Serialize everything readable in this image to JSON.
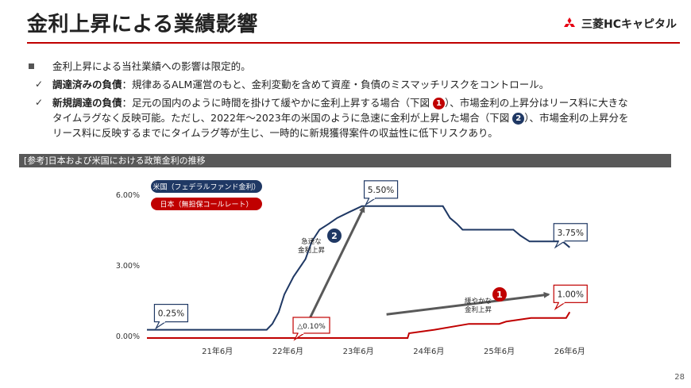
{
  "header": {
    "title": "金利上昇による業績影響",
    "logo_text": "三菱HCキャピタル"
  },
  "bullets": {
    "main": "金利上昇による当社業績への影響は限定的。",
    "item1_bold": "調達済みの負債",
    "item1_text": "：規律あるALM運営のもと、金利変動を含めて資産・負債のミスマッチリスクをコントロール。",
    "item2_bold": "新規調達の負債",
    "item2_text_a": "：足元の国内のように時間を掛けて緩やかに金利上昇する場合（下図",
    "item2_num1": "1",
    "item2_text_b": "）、市場金利の上昇分はリース料に大きな",
    "item2_line2": "タイムラグなく反映可能。ただし、2022年～2023年の米国のように急速に金利が上昇した場合（下図",
    "item2_num2": "2",
    "item2_text_c": "）、市場金利の上昇分を",
    "item2_line3": "リース料に反映するまでにタイムラグ等が生じ、一時的に新規獲得案件の収益性に低下リスクあり。"
  },
  "section": {
    "label": "[参考]日本および米国における政策金利の推移"
  },
  "colors": {
    "us": "#1f3864",
    "jp": "#c00000",
    "arrow": "#595959"
  },
  "icons": {
    "logo": "mitsubishi-three-diamonds-icon",
    "check": "check-icon",
    "bullet": "square-bullet-icon"
  },
  "page_number": "28",
  "chart_data": {
    "type": "line",
    "title": "",
    "ylim": [
      0,
      6
    ],
    "y_ticks": [
      {
        "value": 0,
        "label": "0.00%"
      },
      {
        "value": 3,
        "label": "3.00%"
      },
      {
        "value": 6,
        "label": "6.00%"
      }
    ],
    "x_ticks": [
      {
        "value": 2021.5,
        "label": "21年6月"
      },
      {
        "value": 2022.5,
        "label": "22年6月"
      },
      {
        "value": 2023.5,
        "label": "23年6月"
      },
      {
        "value": 2024.5,
        "label": "24年6月"
      },
      {
        "value": 2025.5,
        "label": "25年6月"
      },
      {
        "value": 2026.5,
        "label": "26年6月"
      }
    ],
    "xlim": [
      2020.5,
      2026.7
    ],
    "grid": false,
    "legend": "top-left",
    "series": [
      {
        "name": "米国（フェデラルファンド金利）",
        "color": "#1f3864",
        "points": [
          [
            2020.5,
            0.25
          ],
          [
            2022.2,
            0.25
          ],
          [
            2022.28,
            0.5
          ],
          [
            2022.37,
            1.0
          ],
          [
            2022.45,
            1.75
          ],
          [
            2022.58,
            2.5
          ],
          [
            2022.75,
            3.25
          ],
          [
            2022.84,
            4.0
          ],
          [
            2022.95,
            4.5
          ],
          [
            2023.08,
            4.75
          ],
          [
            2023.2,
            5.0
          ],
          [
            2023.37,
            5.25
          ],
          [
            2023.55,
            5.5
          ],
          [
            2024.7,
            5.5
          ],
          [
            2024.8,
            5.0
          ],
          [
            2024.9,
            4.75
          ],
          [
            2024.98,
            4.5
          ],
          [
            2025.7,
            4.5
          ],
          [
            2025.8,
            4.25
          ],
          [
            2025.93,
            4.0
          ],
          [
            2026.4,
            4.0
          ],
          [
            2026.5,
            3.75
          ]
        ]
      },
      {
        "name": "日本（無担保コールレート）",
        "color": "#c00000",
        "points": [
          [
            2020.5,
            -0.1
          ],
          [
            2024.2,
            -0.1
          ],
          [
            2024.22,
            0.1
          ],
          [
            2024.58,
            0.25
          ],
          [
            2025.07,
            0.5
          ],
          [
            2025.5,
            0.5
          ],
          [
            2025.6,
            0.6
          ],
          [
            2025.95,
            0.75
          ],
          [
            2026.45,
            0.75
          ],
          [
            2026.5,
            1.0
          ]
        ]
      }
    ],
    "data_labels": [
      {
        "text": "0.25%",
        "x": 2020.55,
        "y": 0.25,
        "series": "us"
      },
      {
        "text": "5.50%",
        "x": 2023.55,
        "y": 5.5,
        "series": "us"
      },
      {
        "text": "3.75%",
        "x": 2026.5,
        "y": 3.75,
        "series": "us"
      },
      {
        "text": "△0.10%",
        "x": 2022.8,
        "y": -0.1,
        "series": "jp"
      },
      {
        "text": "1.00%",
        "x": 2026.5,
        "y": 1.0,
        "series": "jp"
      }
    ],
    "annotations": [
      {
        "number": "2",
        "text_lines": [
          "急速な",
          "金利上昇"
        ],
        "series": "us",
        "from": [
          2022.7,
          0.05
        ],
        "to": [
          2023.58,
          5.45
        ]
      },
      {
        "number": "1",
        "text_lines": [
          "緩やかな",
          "金利上昇"
        ],
        "series": "jp",
        "from": [
          2023.9,
          0.9
        ],
        "to": [
          2026.2,
          1.75
        ]
      }
    ]
  }
}
